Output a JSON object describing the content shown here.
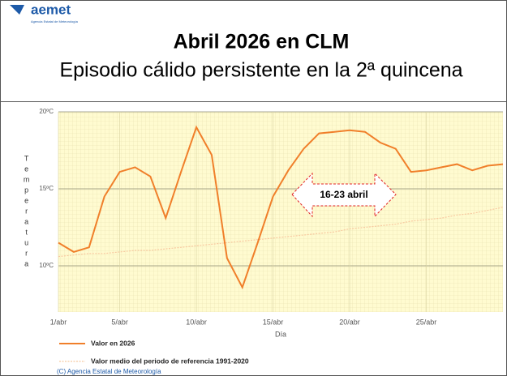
{
  "logo": {
    "name": "aemet",
    "tagline": "Agencia Estatal de Meteorología"
  },
  "chart_data": {
    "type": "line",
    "title": "Abril 2026 en CLM",
    "subtitle": "Episodio cálido persistente en la 2ª quincena",
    "y_label": "Temperatura",
    "x_label": "Día",
    "x": [
      1,
      2,
      3,
      4,
      5,
      6,
      7,
      8,
      9,
      10,
      11,
      12,
      13,
      14,
      15,
      16,
      17,
      18,
      19,
      20,
      21,
      22,
      23,
      24,
      25,
      26,
      27,
      28,
      29,
      30
    ],
    "xlim": [
      1,
      30
    ],
    "xticks": [
      {
        "value": 1,
        "label": "1/abr"
      },
      {
        "value": 5,
        "label": "5/abr"
      },
      {
        "value": 10,
        "label": "10/abr"
      },
      {
        "value": 15,
        "label": "15/abr"
      },
      {
        "value": 20,
        "label": "20/abr"
      },
      {
        "value": 25,
        "label": "25/abr"
      }
    ],
    "ylim": [
      7,
      20
    ],
    "yticks": [
      {
        "value": 10,
        "label": "10ºC"
      },
      {
        "value": 15,
        "label": "15ºC"
      },
      {
        "value": 20,
        "label": "20ºC"
      }
    ],
    "grid": true,
    "series": [
      {
        "name": "Valor en 2026",
        "color": "#f07f2a",
        "style": "solid",
        "values": [
          11.5,
          10.9,
          11.2,
          14.5,
          16.1,
          16.4,
          15.8,
          13.1,
          16.1,
          19.0,
          17.2,
          10.5,
          8.6,
          11.5,
          14.5,
          16.2,
          17.6,
          18.6,
          18.7,
          18.8,
          18.7,
          18.0,
          17.6,
          16.1,
          16.2,
          16.4,
          16.6,
          16.2,
          16.5,
          16.6
        ]
      },
      {
        "name": "Valor medio del periodo de referencia 1991-2020",
        "color": "#f8c9a0",
        "style": "dotted",
        "values": [
          10.6,
          10.7,
          10.8,
          10.8,
          10.9,
          11.0,
          11.0,
          11.1,
          11.2,
          11.3,
          11.4,
          11.5,
          11.6,
          11.7,
          11.8,
          11.9,
          12.0,
          12.1,
          12.2,
          12.4,
          12.5,
          12.6,
          12.7,
          12.9,
          13.0,
          13.1,
          13.3,
          13.4,
          13.6,
          13.8
        ]
      }
    ],
    "annotation": "16-23 abril",
    "credit": "(C) Agencia Estatal de Meteorología"
  }
}
